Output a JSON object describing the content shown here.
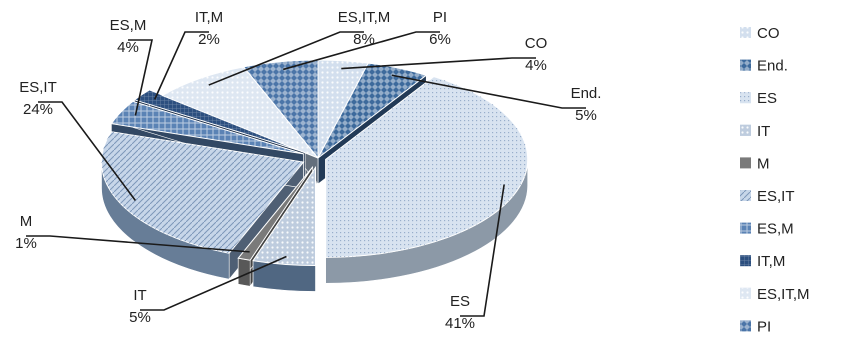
{
  "chart_data": {
    "type": "pie",
    "style": "3D exploded pie",
    "legend_position": "right",
    "slices": [
      {
        "label": "CO",
        "value": 4,
        "data_label": "4%",
        "color": "#9db8d9",
        "pattern": "dots"
      },
      {
        "label": "End.",
        "value": 5,
        "data_label": "5%",
        "color": "#3d6a9c",
        "pattern": "diamonds"
      },
      {
        "label": "ES",
        "value": 41,
        "data_label": "41%",
        "color": "#c3d4e8",
        "pattern": "fine"
      },
      {
        "label": "IT",
        "value": 5,
        "data_label": "5%",
        "color": "#6f8fb5",
        "pattern": "dots"
      },
      {
        "label": "M",
        "value": 1,
        "data_label": "1%",
        "color": "#7a7a7a",
        "pattern": "solid"
      },
      {
        "label": "ES,IT",
        "value": 24,
        "data_label": "24%",
        "color": "#8fadd2",
        "pattern": "diagonal"
      },
      {
        "label": "ES,M",
        "value": 4,
        "data_label": "4%",
        "color": "#5b83b5",
        "pattern": "cross"
      },
      {
        "label": "IT,M",
        "value": 2,
        "data_label": "2%",
        "color": "#2c4f7f",
        "pattern": "grid"
      },
      {
        "label": "ES,IT,M",
        "value": 8,
        "data_label": "8%",
        "color": "#b5c9e2",
        "pattern": "dots"
      },
      {
        "label": "PI",
        "value": 6,
        "data_label": "6%",
        "color": "#4b75a8",
        "pattern": "diamonds"
      }
    ]
  }
}
